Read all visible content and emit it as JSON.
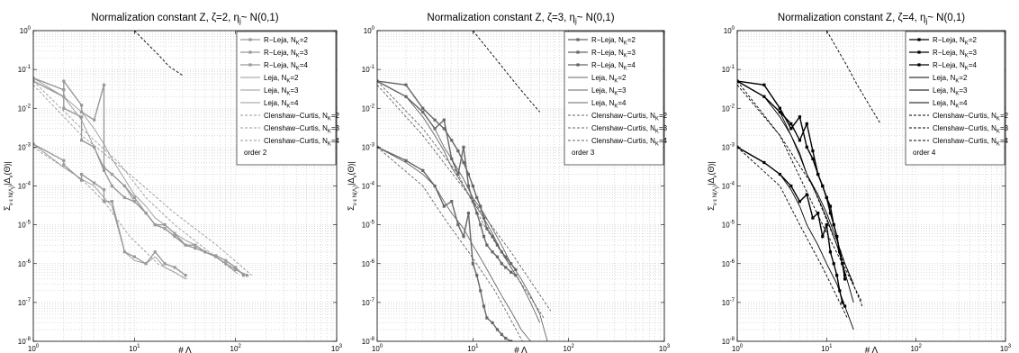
{
  "chart_data": [
    {
      "type": "line",
      "title": "Normalization constant Z, ζ=2, ηⱼ~ N(0,1)",
      "title_parts": {
        "main": "Normalization constant Z, ζ=2, η",
        "sub": "j",
        "rest": "~ N(0,1)"
      },
      "xlabel": "# Λ",
      "ylabel": "Σ_{ν ε N(Λ)} |Δ_ν(Θ)|",
      "xscale": "log",
      "yscale": "log",
      "xlim": [
        1,
        1000
      ],
      "ylim": [
        1e-08,
        1
      ],
      "xticks": [
        "10^0",
        "10^1",
        "10^2",
        "10^3"
      ],
      "yticks": [
        "10^0",
        "10^-1",
        "10^-2",
        "10^-3",
        "10^-4",
        "10^-5",
        "10^-6",
        "10^-7",
        "10^-8"
      ],
      "grid": true,
      "legend_position": "top-right",
      "color": "#999999",
      "order_label": "order 2",
      "series": [
        {
          "name": "R−Leja, N_K=2",
          "style": "marker",
          "x": [
            1,
            2,
            2,
            3,
            3,
            4,
            5,
            5,
            6,
            8,
            10,
            13,
            16,
            20,
            25,
            32
          ],
          "y": [
            0.0012,
            0.00045,
            0.00035,
            0.00014,
            0.0002,
            0.00012,
            8e-05,
            4e-05,
            4e-05,
            2e-06,
            1.5e-06,
            1e-06,
            2e-06,
            1e-06,
            8e-07,
            5e-07
          ]
        },
        {
          "name": "R−Leja, N_K=3",
          "style": "marker",
          "x": [
            1,
            2,
            2,
            3,
            3,
            4,
            5,
            6,
            8,
            10,
            13,
            16,
            20,
            25,
            32,
            40,
            50,
            64,
            80,
            100,
            120
          ],
          "y": [
            0.06,
            0.03,
            0.01,
            0.006,
            0.0015,
            0.001,
            0.00025,
            0.0001,
            5e-05,
            4e-05,
            2e-05,
            1e-05,
            1e-05,
            6e-06,
            3e-06,
            3e-06,
            2e-06,
            1.6e-06,
            1.2e-06,
            8e-07,
            5e-07
          ]
        },
        {
          "name": "R−Leja, N_K=4",
          "style": "marker",
          "x": [
            1,
            2,
            2,
            3,
            3,
            4,
            5,
            5,
            6,
            8,
            10,
            13,
            16,
            20,
            25,
            32,
            40,
            50,
            64,
            80,
            100,
            130
          ],
          "y": [
            0.05,
            0.02,
            0.05,
            0.012,
            0.008,
            0.005,
            0.04,
            0.0003,
            0.0002,
            0.0001,
            5e-05,
            2e-05,
            1e-05,
            8e-06,
            5e-06,
            3e-06,
            2.5e-06,
            2e-06,
            1.5e-06,
            1e-06,
            7e-07,
            5e-07
          ]
        },
        {
          "name": "Leja, N_K=2",
          "style": "solid",
          "x": [
            1,
            2,
            3,
            4,
            5,
            6,
            8,
            10,
            13,
            16,
            20,
            25,
            32
          ],
          "y": [
            0.0012,
            0.0003,
            0.00015,
            0.0001,
            5e-05,
            3e-05,
            2e-06,
            1.2e-06,
            1e-06,
            1.5e-06,
            8e-07,
            6e-07,
            4e-07
          ]
        },
        {
          "name": "Leja, N_K=3",
          "style": "solid",
          "x": [
            1,
            2,
            3,
            4,
            5,
            6,
            8,
            10,
            13,
            16,
            20,
            25,
            32,
            40,
            50,
            64,
            80,
            100
          ],
          "y": [
            0.06,
            0.02,
            0.005,
            0.001,
            0.0003,
            0.0002,
            0.0001,
            4e-05,
            2e-05,
            1e-05,
            8e-06,
            5e-06,
            3e-06,
            2.5e-06,
            2e-06,
            1.5e-06,
            1e-06,
            6e-07
          ]
        },
        {
          "name": "Leja, N_K=4",
          "style": "solid",
          "x": [
            1,
            2,
            3,
            4,
            5,
            6,
            8,
            10,
            13,
            16,
            20,
            25,
            32,
            40,
            50,
            64,
            80,
            100,
            130
          ],
          "y": [
            0.05,
            0.02,
            0.008,
            0.003,
            0.0012,
            0.0005,
            0.00015,
            6e-05,
            3e-05,
            1.5e-05,
            1e-05,
            6e-06,
            4e-06,
            3e-06,
            2e-06,
            1.5e-06,
            1e-06,
            7e-07,
            5e-07
          ]
        },
        {
          "name": "Clenshaw−Curtis, N_K=2",
          "style": "dashed",
          "x": [
            1,
            3,
            5,
            9,
            17,
            33
          ],
          "y": [
            0.001,
            0.00015,
            4e-05,
            5e-06,
            1e-06,
            4e-07
          ]
        },
        {
          "name": "Clenshaw−Curtis, N_K=3",
          "style": "dashed",
          "x": [
            1,
            3,
            7,
            13,
            25,
            55,
            110
          ],
          "y": [
            0.05,
            0.003,
            0.0004,
            5e-05,
            1e-05,
            2e-06,
            5e-07
          ]
        },
        {
          "name": "Clenshaw−Curtis, N_K=4",
          "style": "dashed",
          "x": [
            1,
            3,
            9,
            25,
            65,
            145
          ],
          "y": [
            0.04,
            0.002,
            0.0002,
            2e-05,
            3e-06,
            5e-07
          ]
        },
        {
          "name": "order 2",
          "style": "dashed-black",
          "x": [
            10,
            13,
            17,
            22,
            30
          ],
          "y": [
            1,
            0.5,
            0.25,
            0.12,
            0.07
          ]
        }
      ]
    },
    {
      "type": "line",
      "title": "Normalization constant Z, ζ=3, ηⱼ~ N(0,1)",
      "title_parts": {
        "main": "Normalization constant Z, ζ=3, η",
        "sub": "j",
        "rest": "~ N(0,1)"
      },
      "xlabel": "# Λ",
      "ylabel": "Σ_{ν ε N(Λ)} |Δ_ν(Θ)|",
      "xscale": "log",
      "yscale": "log",
      "xlim": [
        1,
        1000
      ],
      "ylim": [
        1e-08,
        1
      ],
      "xticks": [
        "10^0",
        "10^1",
        "10^2",
        "10^3"
      ],
      "yticks": [
        "10^0",
        "10^-1",
        "10^-2",
        "10^-3",
        "10^-4",
        "10^-5",
        "10^-6",
        "10^-7",
        "10^-8"
      ],
      "grid": true,
      "legend_position": "top-right",
      "color": "#666666",
      "order_label": "order 3",
      "series": [
        {
          "name": "R−Leja, N_K=2",
          "style": "marker",
          "x": [
            1,
            2,
            3,
            4,
            5,
            6,
            7,
            8,
            9,
            10,
            11,
            12,
            13,
            14,
            16,
            18,
            20,
            22,
            25
          ],
          "y": [
            0.001,
            0.00045,
            0.00025,
            0.0001,
            3e-05,
            4e-05,
            1e-05,
            5e-06,
            2e-05,
            1e-06,
            5e-07,
            2e-07,
            8e-08,
            4e-08,
            3e-08,
            2e-08,
            1.5e-08,
            1.2e-08,
            1e-08
          ]
        },
        {
          "name": "R−Leja, N_K=3",
          "style": "marker",
          "x": [
            1,
            2,
            3,
            4,
            5,
            6,
            7,
            8,
            9,
            10,
            11,
            12,
            13,
            14,
            16,
            18,
            20,
            22,
            25,
            28
          ],
          "y": [
            0.05,
            0.02,
            0.008,
            0.003,
            0.005,
            0.0005,
            0.0002,
            0.001,
            0.0001,
            4e-05,
            2e-05,
            1e-05,
            5e-06,
            3e-06,
            2e-06,
            1.5e-06,
            1e-06,
            8e-07,
            6e-07,
            5e-07
          ]
        },
        {
          "name": "R−Leja, N_K=4",
          "style": "marker",
          "x": [
            1,
            2,
            3,
            4,
            5,
            6,
            7,
            8,
            9,
            10,
            11,
            12,
            13,
            14,
            16,
            18,
            20,
            22,
            25,
            28
          ],
          "y": [
            0.05,
            0.04,
            0.01,
            0.005,
            0.003,
            0.0015,
            0.0008,
            0.0004,
            0.0002,
            0.0001,
            5e-05,
            3e-05,
            1.5e-05,
            8e-06,
            5e-06,
            3e-06,
            2e-06,
            1.5e-06,
            1e-06,
            7e-07
          ]
        },
        {
          "name": "Leja, N_K=2",
          "style": "solid",
          "x": [
            1,
            2,
            3,
            4,
            5,
            6,
            8,
            10,
            13,
            16,
            20,
            25,
            32,
            40
          ],
          "y": [
            0.001,
            0.0004,
            0.0002,
            0.0001,
            4e-05,
            2e-05,
            8e-06,
            3e-06,
            1e-06,
            4e-07,
            1.5e-07,
            6e-08,
            2e-08,
            1e-08
          ]
        },
        {
          "name": "Leja, N_K=3",
          "style": "solid",
          "x": [
            1,
            2,
            3,
            4,
            5,
            6,
            8,
            10,
            13,
            16,
            20,
            25,
            32,
            40,
            50
          ],
          "y": [
            0.05,
            0.02,
            0.006,
            0.002,
            0.0008,
            0.0003,
            0.0001,
            4e-05,
            1.5e-05,
            6e-06,
            2e-06,
            8e-07,
            3e-07,
            1e-07,
            3e-08
          ]
        },
        {
          "name": "Leja, N_K=4",
          "style": "solid",
          "x": [
            1,
            2,
            3,
            4,
            5,
            6,
            8,
            10,
            13,
            16,
            20,
            25,
            32,
            40,
            50,
            60
          ],
          "y": [
            0.05,
            0.02,
            0.008,
            0.003,
            0.001,
            0.0005,
            0.00015,
            5e-05,
            2e-05,
            8e-06,
            3e-06,
            1e-06,
            4e-07,
            1.5e-07,
            5e-08,
            1e-08
          ]
        },
        {
          "name": "Clenshaw−Curtis, N_K=2",
          "style": "dashed",
          "x": [
            1,
            3,
            5,
            9,
            17,
            33
          ],
          "y": [
            0.001,
            0.0001,
            1.5e-05,
            2e-06,
            2e-07,
            1e-08
          ]
        },
        {
          "name": "Clenshaw−Curtis, N_K=3",
          "style": "dashed",
          "x": [
            1,
            3,
            7,
            13,
            25,
            55
          ],
          "y": [
            0.05,
            0.003,
            0.0002,
            1e-05,
            8e-07,
            4e-08
          ]
        },
        {
          "name": "Clenshaw−Curtis, N_K=4",
          "style": "dashed",
          "x": [
            1,
            3,
            9,
            25,
            65
          ],
          "y": [
            0.04,
            0.002,
            6e-05,
            2e-06,
            6e-08
          ]
        },
        {
          "name": "order 3",
          "style": "dashed-black",
          "x": [
            10,
            13,
            17,
            22,
            30,
            40,
            50
          ],
          "y": [
            1,
            0.45,
            0.2,
            0.09,
            0.035,
            0.015,
            0.008
          ]
        }
      ]
    },
    {
      "type": "line",
      "title": "Normalization constant Z, ζ=4, ηⱼ~ N(0,1)",
      "title_parts": {
        "main": "Normalization constant Z, ζ=4, η",
        "sub": "j",
        "rest": "~ N(0,1)"
      },
      "xlabel": "# Λ",
      "ylabel": "Σ_{ν ε N(Λ)} |Δ_ν(Θ)|",
      "xscale": "log",
      "yscale": "log",
      "xlim": [
        1,
        1000
      ],
      "ylim": [
        1e-08,
        1
      ],
      "xticks": [
        "10^0",
        "10^1",
        "10^2",
        "10^3"
      ],
      "yticks": [
        "10^0",
        "10^-1",
        "10^-2",
        "10^-3",
        "10^-4",
        "10^-5",
        "10^-6",
        "10^-7",
        "10^-8"
      ],
      "grid": true,
      "legend_position": "top-right",
      "color": "#000000",
      "order_label": "order 4",
      "series": [
        {
          "name": "R−Leja, N_K=2",
          "style": "marker",
          "x": [
            1,
            2,
            3,
            4,
            5,
            6,
            7,
            8,
            9,
            10,
            11,
            12,
            13,
            14,
            15,
            16
          ],
          "y": [
            0.001,
            0.0004,
            0.0002,
            0.0001,
            4e-05,
            6e-05,
            1.5e-05,
            2e-05,
            5e-06,
            1e-05,
            2e-06,
            1e-06,
            5e-07,
            2e-07,
            1e-07,
            8e-08
          ]
        },
        {
          "name": "R−Leja, N_K=3",
          "style": "marker",
          "x": [
            1,
            2,
            3,
            4,
            5,
            6,
            7,
            8,
            9,
            10,
            11,
            12,
            13,
            14,
            15,
            16
          ],
          "y": [
            0.05,
            0.02,
            0.008,
            0.004,
            0.0015,
            0.004,
            0.0008,
            0.0002,
            0.0001,
            5e-05,
            3e-05,
            1e-05,
            5e-06,
            2e-06,
            1e-06,
            4e-07
          ]
        },
        {
          "name": "R−Leja, N_K=4",
          "style": "marker",
          "x": [
            1,
            2,
            3,
            4,
            5,
            6,
            7,
            8,
            9,
            10,
            11,
            12,
            13,
            14,
            15,
            16
          ],
          "y": [
            0.05,
            0.04,
            0.01,
            0.003,
            0.006,
            0.001,
            0.0005,
            0.0002,
            0.0001,
            5e-05,
            2e-05,
            1e-05,
            5e-06,
            2e-06,
            1e-06,
            5e-07
          ]
        },
        {
          "name": "Leja, N_K=2",
          "style": "solid",
          "x": [
            1,
            2,
            3,
            4,
            5,
            6,
            8,
            10,
            13,
            16,
            20
          ],
          "y": [
            0.001,
            0.0004,
            0.0002,
            8e-05,
            3e-05,
            1e-05,
            3e-06,
            1e-06,
            3e-07,
            8e-08,
            2e-08
          ]
        },
        {
          "name": "Leja, N_K=3",
          "style": "solid",
          "x": [
            1,
            2,
            3,
            4,
            5,
            6,
            8,
            10,
            13,
            16,
            20
          ],
          "y": [
            0.05,
            0.02,
            0.006,
            0.002,
            0.0007,
            0.0002,
            6e-05,
            2e-05,
            4e-06,
            1e-06,
            3e-07
          ]
        },
        {
          "name": "Leja, N_K=4",
          "style": "solid",
          "x": [
            1,
            2,
            3,
            4,
            5,
            6,
            8,
            10,
            13,
            16,
            20
          ],
          "y": [
            0.05,
            0.02,
            0.008,
            0.002,
            0.0006,
            0.0002,
            5e-05,
            1.5e-05,
            3e-06,
            6e-07,
            1e-07
          ]
        },
        {
          "name": "Clenshaw−Curtis, N_K=2",
          "style": "dashed",
          "x": [
            1,
            3,
            5,
            9,
            17
          ],
          "y": [
            0.001,
            0.0001,
            1e-05,
            8e-07,
            4e-08
          ]
        },
        {
          "name": "Clenshaw−Curtis, N_K=3",
          "style": "dashed",
          "x": [
            1,
            3,
            7,
            13,
            25
          ],
          "y": [
            0.05,
            0.002,
            0.0001,
            3e-06,
            8e-08
          ]
        },
        {
          "name": "Clenshaw−Curtis, N_K=4",
          "style": "dashed",
          "x": [
            1,
            3,
            9,
            25
          ],
          "y": [
            0.04,
            0.002,
            1e-05,
            1e-07
          ]
        },
        {
          "name": "order 4",
          "style": "dashed-black",
          "x": [
            10,
            13,
            17,
            22,
            30,
            40
          ],
          "y": [
            1,
            0.35,
            0.12,
            0.04,
            0.012,
            0.004
          ]
        }
      ]
    }
  ]
}
